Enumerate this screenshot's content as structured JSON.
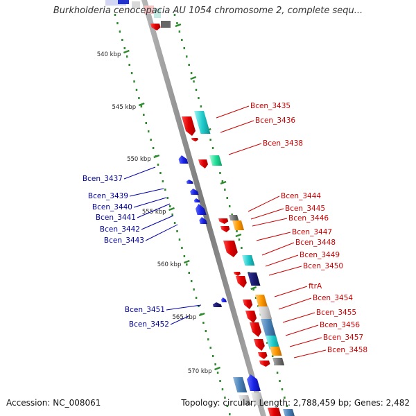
{
  "title": "Burkholderia cenocepacia AU 1054 chromosome 2, complete sequ...",
  "footer": {
    "accession": "Accession: NC_008061",
    "summary": "Topology: circular; Length: 2,788,459 bp; Genes: 2,482"
  },
  "colors": {
    "forward_label": "#cc0000",
    "reverse_label": "#000099",
    "kbp_tick": "#339933",
    "backbone": "#888888"
  },
  "scale_labels": [
    {
      "kbp": 540,
      "label": "540 kbp"
    },
    {
      "kbp": 545,
      "label": "545 kbp"
    },
    {
      "kbp": 550,
      "label": "550 kbp"
    },
    {
      "kbp": 555,
      "label": "555 kbp"
    },
    {
      "kbp": 560,
      "label": "560 kbp"
    },
    {
      "kbp": 565,
      "label": "565 kbp"
    },
    {
      "kbp": 570,
      "label": "570 kbp"
    }
  ],
  "forward_gene_labels": [
    "Bcen_3435",
    "Bcen_3436",
    "Bcen_3438",
    "Bcen_3444",
    "Bcen_3445",
    "Bcen_3446",
    "Bcen_3447",
    "Bcen_3448",
    "Bcen_3449",
    "Bcen_3450",
    "ftrA",
    "Bcen_3454",
    "Bcen_3455",
    "Bcen_3456",
    "Bcen_3457",
    "Bcen_3458"
  ],
  "reverse_gene_labels": [
    "Bcen_3437",
    "Bcen_3439",
    "Bcen_3440",
    "Bcen_3441",
    "Bcen_3442",
    "Bcen_3443",
    "Bcen_3451",
    "Bcen_3452"
  ]
}
